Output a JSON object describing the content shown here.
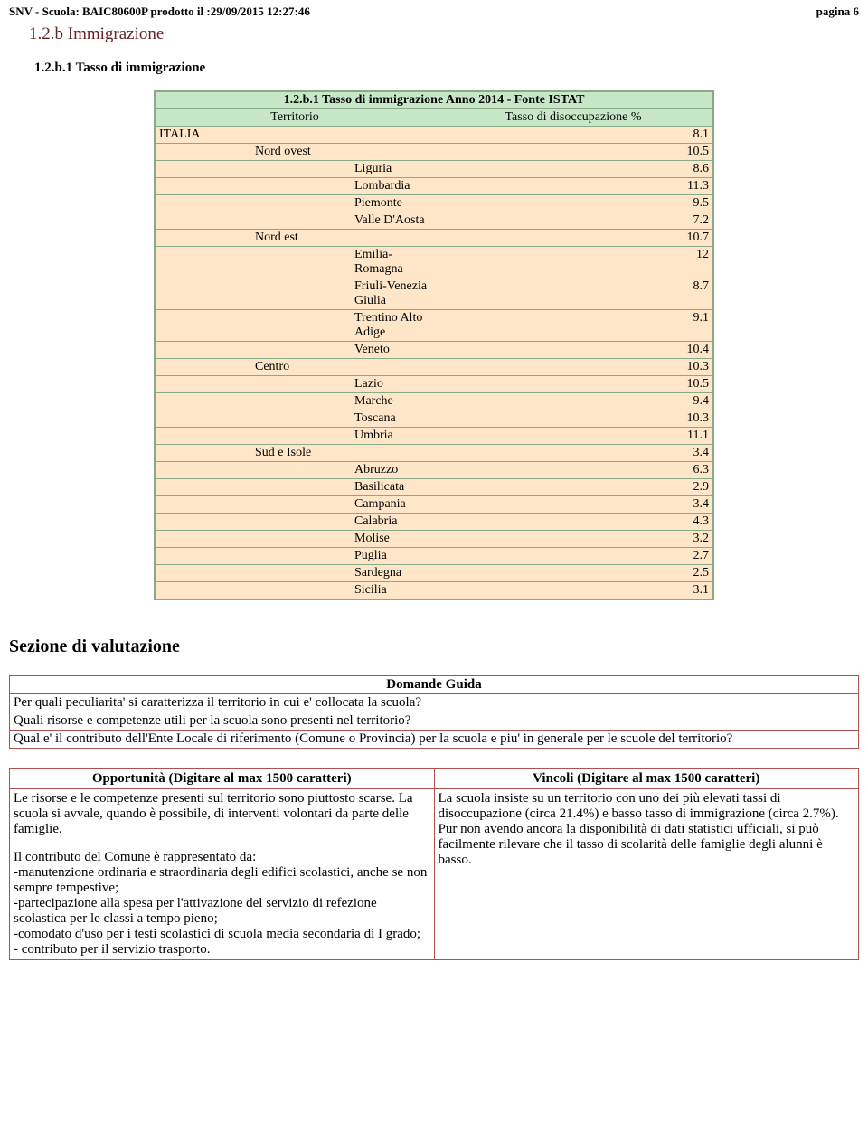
{
  "header": {
    "left": "SNV - Scuola: BAIC80600P prodotto il :29/09/2015 12:27:46",
    "right": "pagina 6"
  },
  "section_title": "1.2.b Immigrazione",
  "subsection_title": "1.2.b.1 Tasso di immigrazione",
  "table": {
    "caption": "1.2.b.1 Tasso di immigrazione Anno 2014 - Fonte ISTAT",
    "col1": "Territorio",
    "col2": "Tasso di disoccupazione %",
    "rows": [
      {
        "label": "ITALIA",
        "value": "8.1",
        "indent": 0
      },
      {
        "label": "Nord ovest",
        "value": "10.5",
        "indent": 1
      },
      {
        "label": "Liguria",
        "value": "8.6",
        "indent": 2
      },
      {
        "label": "Lombardia",
        "value": "11.3",
        "indent": 2
      },
      {
        "label": "Piemonte",
        "value": "9.5",
        "indent": 2
      },
      {
        "label": "Valle D'Aosta",
        "value": "7.2",
        "indent": 2
      },
      {
        "label": "Nord est",
        "value": "10.7",
        "indent": 1
      },
      {
        "label": "Emilia-Romagna",
        "value": "12",
        "indent": 2
      },
      {
        "label": "Friuli-Venezia Giulia",
        "value": "8.7",
        "indent": 2
      },
      {
        "label": "Trentino Alto Adige",
        "value": "9.1",
        "indent": 2
      },
      {
        "label": "Veneto",
        "value": "10.4",
        "indent": 2
      },
      {
        "label": "Centro",
        "value": "10.3",
        "indent": 1
      },
      {
        "label": "Lazio",
        "value": "10.5",
        "indent": 2
      },
      {
        "label": "Marche",
        "value": "9.4",
        "indent": 2
      },
      {
        "label": "Toscana",
        "value": "10.3",
        "indent": 2
      },
      {
        "label": "Umbria",
        "value": "11.1",
        "indent": 2
      },
      {
        "label": "Sud e Isole",
        "value": "3.4",
        "indent": 1
      },
      {
        "label": "Abruzzo",
        "value": "6.3",
        "indent": 2
      },
      {
        "label": "Basilicata",
        "value": "2.9",
        "indent": 2
      },
      {
        "label": "Campania",
        "value": "3.4",
        "indent": 2
      },
      {
        "label": "Calabria",
        "value": "4.3",
        "indent": 2
      },
      {
        "label": "Molise",
        "value": "3.2",
        "indent": 2
      },
      {
        "label": "Puglia",
        "value": "2.7",
        "indent": 2
      },
      {
        "label": "Sardegna",
        "value": "2.5",
        "indent": 2
      },
      {
        "label": "Sicilia",
        "value": "3.1",
        "indent": 2
      }
    ]
  },
  "eval_title": "Sezione di valutazione",
  "guide": {
    "title": "Domande Guida",
    "q1": "Per quali peculiarita' si caratterizza il territorio in cui e' collocata la scuola?",
    "q2": "Quali risorse e competenze utili per la scuola sono presenti nel territorio?",
    "q3": "Qual e' il contributo dell'Ente Locale di riferimento (Comune o Provincia) per la scuola e piu' in generale per le scuole del territorio?"
  },
  "opp": {
    "title": "Opportunità (Digitare al max 1500 caratteri)",
    "p1": "Le risorse e le competenze presenti sul territorio sono piuttosto scarse. La scuola si avvale, quando è possibile, di interventi volontari da parte delle famiglie.",
    "p2": "Il contributo del Comune è rappresentato da:\n-manutenzione ordinaria e straordinaria degli edifici scolastici, anche se non sempre tempestive;\n-partecipazione alla spesa per l'attivazione del servizio di refezione scolastica per le classi a tempo pieno;\n-comodato d'uso per i testi scolastici di scuola media secondaria di I grado;\n- contributo per il servizio trasporto."
  },
  "vin": {
    "title": "Vincoli (Digitare al max 1500 caratteri)",
    "p1": "La scuola insiste su un territorio con uno dei più elevati tassi di disoccupazione  (circa 21.4%) e basso tasso di immigrazione (circa 2.7%). Pur non avendo ancora la disponibilità di dati statistici ufficiali, si può facilmente rilevare che il tasso di scolarità delle famiglie degli alunni è basso."
  }
}
